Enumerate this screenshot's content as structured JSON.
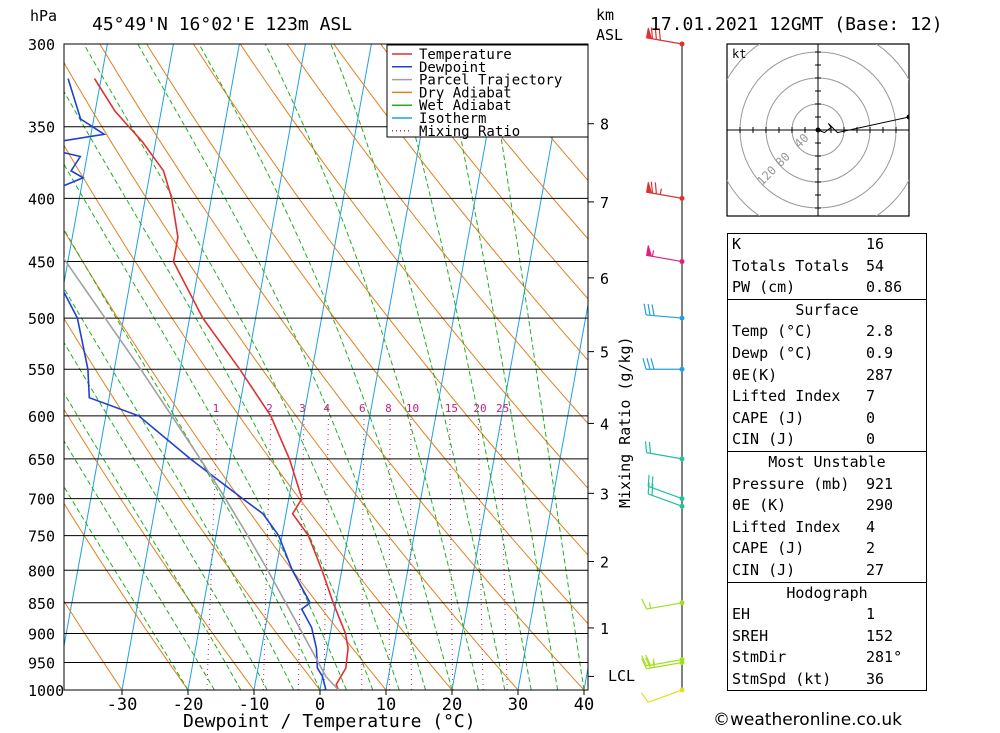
{
  "header": {
    "pressure_unit": "hPa",
    "location": "45°49'N  16°02'E  123m  ASL",
    "height_unit_top": "km",
    "height_unit_bottom": "ASL",
    "datetime": "17.01.2021  12GMT  (Base: 12)"
  },
  "legend": [
    {
      "label": "Temperature",
      "color": "#e03030",
      "style": "solid"
    },
    {
      "label": "Dewpoint",
      "color": "#2040d0",
      "style": "solid"
    },
    {
      "label": "Parcel Trajectory",
      "color": "#a0a0a0",
      "style": "solid"
    },
    {
      "label": "Dry Adiabat",
      "color": "#e08020",
      "style": "solid"
    },
    {
      "label": "Wet Adiabat",
      "color": "#20b020",
      "style": "solid"
    },
    {
      "label": "Isotherm",
      "color": "#20a0e0",
      "style": "solid"
    },
    {
      "label": "Mixing Ratio",
      "color": "#c02080",
      "style": "dotted"
    }
  ],
  "chart_data": {
    "type": "line",
    "subtype": "skew-t log-p sounding",
    "xlabel": "Dewpoint / Temperature (°C)",
    "x_ticks": [
      -30,
      -20,
      -10,
      0,
      10,
      20,
      30,
      40
    ],
    "y_scale": "log",
    "ylim": [
      1000,
      300
    ],
    "pressure_levels": [
      300,
      350,
      400,
      450,
      500,
      550,
      600,
      650,
      700,
      750,
      800,
      850,
      900,
      950,
      1000
    ],
    "height_axis_label": "km ASL",
    "height_ticks_km": [
      1,
      2,
      3,
      4,
      5,
      6,
      7,
      8
    ],
    "lcl_label": "LCL",
    "lcl_pressure": 975,
    "mixing_ratio_label": "Mixing Ratio (g/kg)",
    "mixing_ratio_ticks": [
      "1",
      "2",
      "3",
      "4",
      "6",
      "8",
      "10",
      "15",
      "20",
      "25"
    ],
    "mixing_ratio_values": [
      1,
      2,
      3,
      4,
      6,
      8,
      10,
      15,
      20,
      25
    ],
    "grid": true,
    "series": [
      {
        "name": "Temperature",
        "color": "#e03030",
        "points": [
          [
            1000,
            2.8
          ],
          [
            990,
            2.3
          ],
          [
            960,
            3.3
          ],
          [
            925,
            3.1
          ],
          [
            900,
            2.3
          ],
          [
            850,
            -0.4
          ],
          [
            800,
            -3.0
          ],
          [
            750,
            -6.0
          ],
          [
            720,
            -9.0
          ],
          [
            700,
            -8.0
          ],
          [
            650,
            -11.0
          ],
          [
            600,
            -15.0
          ],
          [
            550,
            -21.0
          ],
          [
            500,
            -28.0
          ],
          [
            450,
            -34.0
          ],
          [
            430,
            -34.0
          ],
          [
            400,
            -36.0
          ],
          [
            380,
            -38.0
          ],
          [
            360,
            -42.0
          ],
          [
            340,
            -47.0
          ],
          [
            320,
            -51.0
          ]
        ]
      },
      {
        "name": "Dewpoint",
        "color": "#2040d0",
        "points": [
          [
            1000,
            0.9
          ],
          [
            975,
            0.0
          ],
          [
            960,
            -1.0
          ],
          [
            925,
            -1.7
          ],
          [
            890,
            -3.0
          ],
          [
            860,
            -5.0
          ],
          [
            850,
            -3.9
          ],
          [
            800,
            -7.5
          ],
          [
            750,
            -10.5
          ],
          [
            720,
            -13.5
          ],
          [
            700,
            -17.0
          ],
          [
            650,
            -26.0
          ],
          [
            600,
            -35.0
          ],
          [
            580,
            -43.0
          ],
          [
            550,
            -44.0
          ],
          [
            500,
            -47.0
          ],
          [
            450,
            -53.0
          ],
          [
            430,
            -57.0
          ],
          [
            400,
            -57.0
          ],
          [
            385,
            -50.0
          ],
          [
            380,
            -52.0
          ],
          [
            370,
            -51.0
          ],
          [
            365,
            -56.0
          ],
          [
            360,
            -55.0
          ],
          [
            355,
            -48.0
          ],
          [
            345,
            -52.0
          ],
          [
            320,
            -55.0
          ]
        ]
      },
      {
        "name": "Parcel Trajectory",
        "color": "#a0a0a0",
        "points": [
          [
            1000,
            2.8
          ],
          [
            975,
            0.5
          ],
          [
            950,
            -1.0
          ],
          [
            900,
            -4.2
          ],
          [
            850,
            -7.6
          ],
          [
            800,
            -11.2
          ],
          [
            750,
            -15.2
          ],
          [
            700,
            -19.6
          ],
          [
            650,
            -24.5
          ],
          [
            600,
            -30.0
          ],
          [
            550,
            -36.0
          ],
          [
            500,
            -42.8
          ],
          [
            450,
            -50.3
          ],
          [
            400,
            -58.8
          ],
          [
            350,
            -68.6
          ],
          [
            300,
            -80.0
          ]
        ]
      }
    ],
    "wind_barbs": [
      {
        "pressure": 1000,
        "dir": 250,
        "speed_kt": 10,
        "color": "#e0e020"
      },
      {
        "pressure": 950,
        "dir": 260,
        "speed_kt": 25,
        "color": "#a0e020"
      },
      {
        "pressure": 945,
        "dir": 260,
        "speed_kt": 25,
        "color": "#a0e020"
      },
      {
        "pressure": 850,
        "dir": 260,
        "speed_kt": 15,
        "color": "#a0e020"
      },
      {
        "pressure": 710,
        "dir": 290,
        "speed_kt": 20,
        "color": "#20c0a0"
      },
      {
        "pressure": 700,
        "dir": 290,
        "speed_kt": 20,
        "color": "#20c0a0"
      },
      {
        "pressure": 650,
        "dir": 280,
        "speed_kt": 20,
        "color": "#20c0a0"
      },
      {
        "pressure": 550,
        "dir": 270,
        "speed_kt": 30,
        "color": "#20a0e0"
      },
      {
        "pressure": 500,
        "dir": 275,
        "speed_kt": 30,
        "color": "#20a0e0"
      },
      {
        "pressure": 450,
        "dir": 280,
        "speed_kt": 55,
        "color": "#e02080"
      },
      {
        "pressure": 400,
        "dir": 280,
        "speed_kt": 75,
        "color": "#e03030"
      },
      {
        "pressure": 300,
        "dir": 280,
        "speed_kt": 80,
        "color": "#e03030"
      }
    ],
    "hodograph": {
      "unit": "kt",
      "ring_labels": [
        "40",
        "80",
        "120"
      ],
      "points": [
        [
          0,
          0
        ],
        [
          5,
          -2
        ],
        [
          10,
          2
        ],
        [
          8,
          5
        ],
        [
          15,
          -2
        ],
        [
          70,
          10
        ]
      ]
    }
  },
  "stats": {
    "index_rows": [
      {
        "label": "K",
        "value": "16"
      },
      {
        "label": "Totals Totals",
        "value": "54"
      },
      {
        "label": "PW (cm)",
        "value": "0.86"
      }
    ],
    "surface": {
      "title": "Surface",
      "rows": [
        {
          "label": "Temp (°C)",
          "value": "2.8"
        },
        {
          "label": "Dewp (°C)",
          "value": "0.9"
        },
        {
          "label": "θE(K)",
          "value": "287"
        },
        {
          "label": "Lifted Index",
          "value": "7"
        },
        {
          "label": "CAPE (J)",
          "value": "0"
        },
        {
          "label": "CIN (J)",
          "value": "0"
        }
      ]
    },
    "most_unstable": {
      "title": "Most Unstable",
      "rows": [
        {
          "label": "Pressure (mb)",
          "value": "921"
        },
        {
          "label": "θE (K)",
          "value": "290"
        },
        {
          "label": "Lifted Index",
          "value": "4"
        },
        {
          "label": "CAPE (J)",
          "value": "2"
        },
        {
          "label": "CIN (J)",
          "value": "27"
        }
      ]
    },
    "hodograph": {
      "title": "Hodograph",
      "rows": [
        {
          "label": "EH",
          "value": "1"
        },
        {
          "label": "SREH",
          "value": "152"
        },
        {
          "label": "StmDir",
          "value": "281°"
        },
        {
          "label": "StmSpd (kt)",
          "value": "36"
        }
      ]
    }
  },
  "footer": {
    "copyright": "©weatheronline.co.uk"
  }
}
